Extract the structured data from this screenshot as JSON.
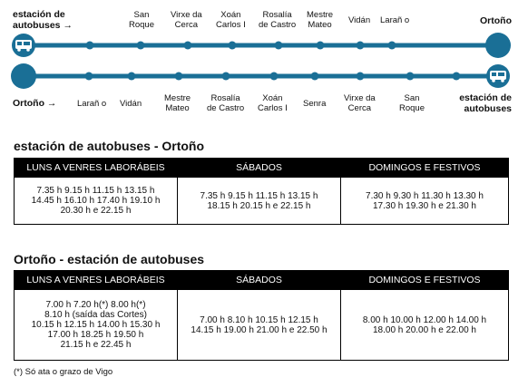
{
  "route": {
    "outbound": {
      "origin_line1": "estación de",
      "origin_line2": "autobuses",
      "arrow": "→",
      "destination": "Ortoño",
      "stops": [
        [
          "San",
          "Roque"
        ],
        [
          "Virxe da",
          "Cerca"
        ],
        [
          "Xoán",
          "Carlos I"
        ],
        [
          "Rosalía",
          "de Castro"
        ],
        [
          "Mestre",
          "Mateo"
        ],
        [
          "Vidán"
        ],
        [
          "Larañ o"
        ]
      ]
    },
    "inbound": {
      "origin": "Ortoño",
      "arrow": "→",
      "destination_line1": "estación de",
      "destination_line2": "autobuses",
      "stops": [
        [
          "Larañ o"
        ],
        [
          "Vidán"
        ],
        [
          "Mestre",
          "Mateo"
        ],
        [
          "Rosalía",
          "de Castro"
        ],
        [
          "Xoán",
          "Carlos I"
        ],
        [
          "Senra"
        ],
        [
          "Virxe da",
          "Cerca"
        ],
        [
          "San",
          "Roque"
        ]
      ]
    },
    "line_color": "#1a6f96"
  },
  "schedules": [
    {
      "title": "estación de autobuses - Ortoño",
      "headers": [
        "LUNS A VENRES LABORÁBEIS",
        "SÁBADOS",
        "DOMINGOS E FESTIVOS"
      ],
      "cells": [
        [
          "7.35 h 9.15 h 11.15 h 13.15 h",
          "14.45 h 16.10 h 17.40 h 19.10 h",
          "20.30 h e 22.15 h"
        ],
        [
          "7.35 h 9.15 h 11.15 h 13.15 h",
          "18.15 h 20.15 h e 22.15 h"
        ],
        [
          "7.30 h 9.30 h 11.30 h 13.30 h",
          "17.30 h 19.30 h e 21.30 h"
        ]
      ]
    },
    {
      "title": "Ortoño - estación de autobuses",
      "headers": [
        "LUNS A VENRES LABORÁBEIS",
        "SÁBADOS",
        "DOMINGOS E FESTIVOS"
      ],
      "cells": [
        [
          "7.00 h 7.20 h(*) 8.00 h(*)",
          "8.10 h (saída das Cortes)",
          "10.15 h 12.15 h 14.00 h 15.30 h",
          "17.00 h 18.25 h 19.50 h",
          "21.15 h e 22.45 h"
        ],
        [
          "7.00 h 8.10 h 10.15 h 12.15 h",
          "14.15 h 19.00 h 21.00 h e 22.50 h"
        ],
        [
          "8.00 h 10.00 h 12.00 h 14.00 h",
          "18.00 h 20.00 h e 22.00 h"
        ]
      ]
    }
  ],
  "footnote": "(*) Só ata o grazo de Vigo"
}
